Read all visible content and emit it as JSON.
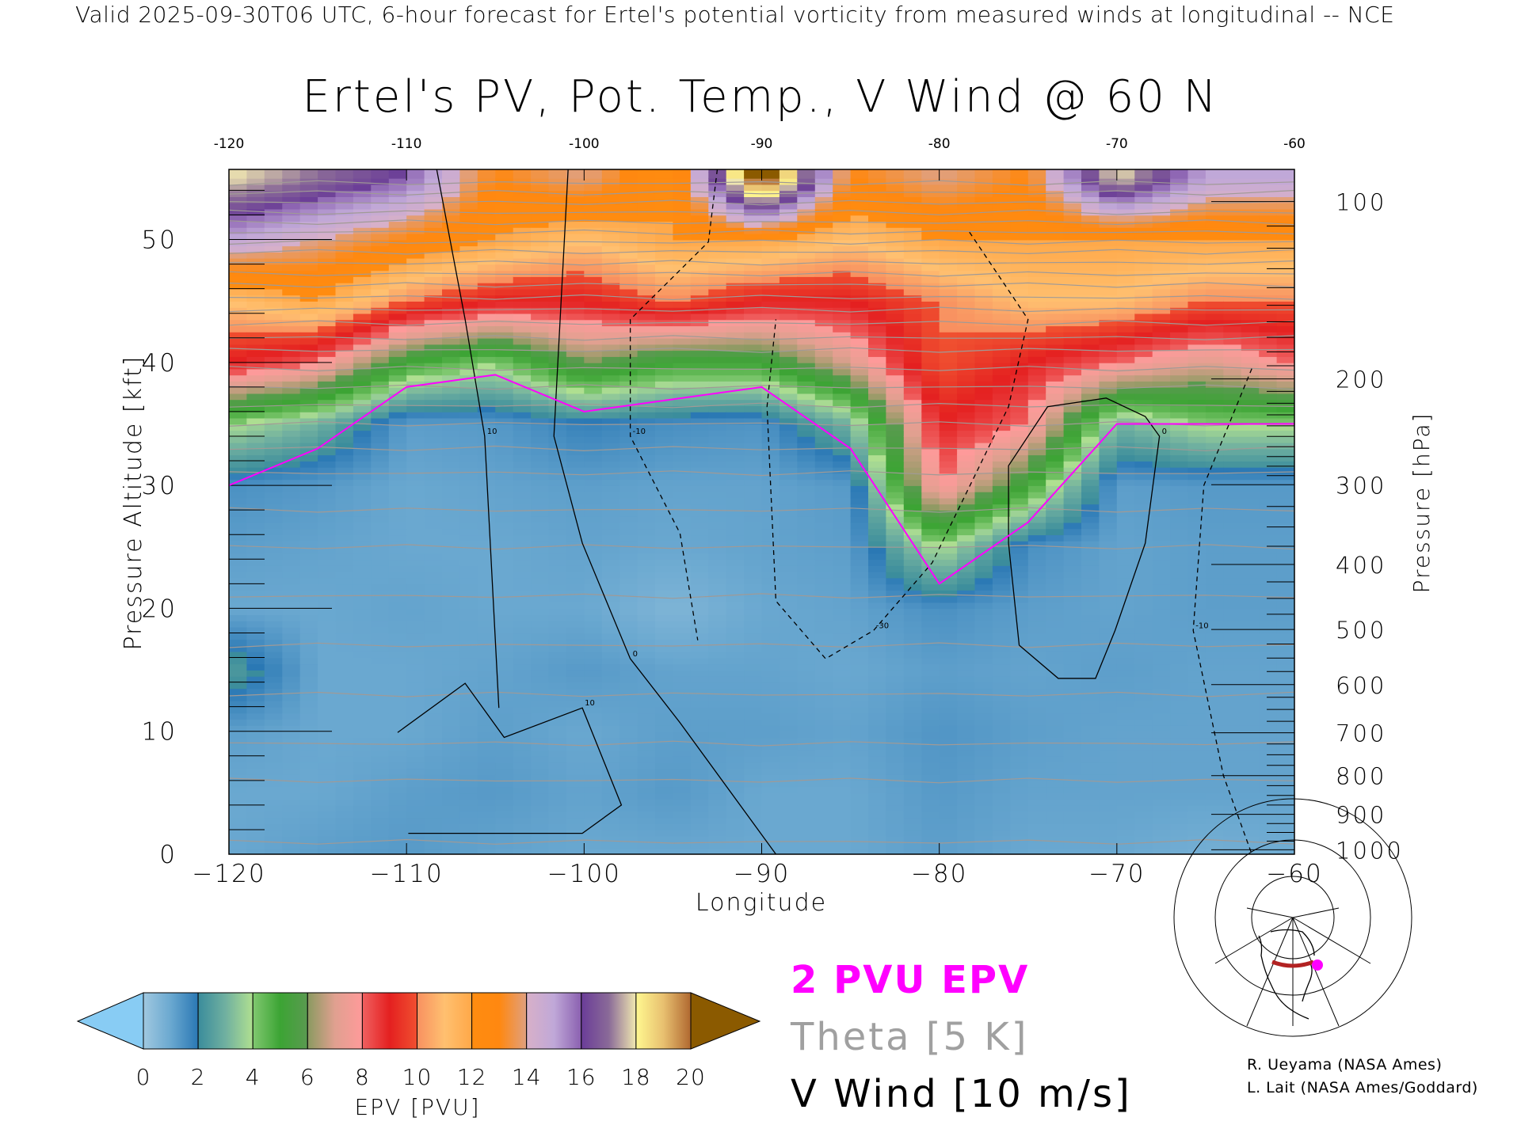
{
  "header": {
    "subtitle": "Valid 2025-09-30T06 UTC, 6-hour forecast for Ertel's potential vorticity from measured winds at longitudinal -- NCE",
    "title": "Ertel's PV, Pot. Temp., V Wind @ 60 N"
  },
  "legend": {
    "epv_label": "2 PVU EPV",
    "theta_label": "Theta [5 K]",
    "wind_label": "V Wind [10 m/s]",
    "epv_color": "#ff00ff",
    "theta_color": "#a0a0a0",
    "wind_color": "#000000"
  },
  "credits": {
    "line1": "R. Ueyama (NASA Ames)",
    "line2": "L. Lait (NASA Ames/Goddard)"
  },
  "chart_data": {
    "type": "heatmap",
    "title": "Ertel's PV, Pot. Temp., V Wind @ 60 N",
    "xlabel": "Longitude",
    "ylabel": "Pressure Altitude [kft]",
    "ylabel_right": "Pressure [hPa]",
    "xlim": [
      -120,
      -60
    ],
    "ylim": [
      0,
      55.7
    ],
    "x_ticks": [
      -120,
      -110,
      -100,
      -90,
      -80,
      -70,
      -60
    ],
    "x_tick_labels": [
      "−120",
      "−110",
      "−100",
      "−90",
      "−80",
      "−70",
      "−60"
    ],
    "top_tick_labels": [
      "-120",
      "-110",
      "-100",
      "-90",
      "-80",
      "-70",
      "-60"
    ],
    "y_ticks": [
      0,
      10,
      20,
      30,
      40,
      50
    ],
    "y_tick_labels": [
      "0",
      "10",
      "20",
      "30",
      "40",
      "50"
    ],
    "pressure_ticks": [
      100,
      200,
      300,
      400,
      500,
      600,
      700,
      800,
      900,
      1000
    ],
    "pressure_tick_labels": [
      "100",
      "200",
      "300",
      "400",
      "500",
      "600",
      "700",
      "800",
      "900",
      "1000"
    ],
    "grid_lon": [
      -120,
      -115,
      -110,
      -105,
      -100,
      -95,
      -90,
      -85,
      -80,
      -75,
      -70,
      -65,
      -60
    ],
    "grid_alt_kft": [
      0,
      5,
      10,
      15,
      20,
      25,
      30,
      35,
      40,
      45,
      50,
      55
    ],
    "epv_pvu_by_lon": [
      [
        1.0,
        1.0,
        1.2,
        2.5,
        1.0,
        1.2,
        1.5,
        4.0,
        9.0,
        11,
        15,
        18
      ],
      [
        1.2,
        1.0,
        1.0,
        1.0,
        1.0,
        1.1,
        1.3,
        3.0,
        8.0,
        12,
        14,
        17
      ],
      [
        1.3,
        1.2,
        1.0,
        1.0,
        1.1,
        1.0,
        1.0,
        1.2,
        5.0,
        10,
        13,
        16
      ],
      [
        1.1,
        1.3,
        1.2,
        1.1,
        1.0,
        1.0,
        1.1,
        1.3,
        4.0,
        9,
        12,
        13
      ],
      [
        1.0,
        1.1,
        1.0,
        1.3,
        1.0,
        1.1,
        1.2,
        1.8,
        6.0,
        9,
        11,
        14
      ],
      [
        1.0,
        1.3,
        1.2,
        1.1,
        0.6,
        1.0,
        1.1,
        1.5,
        5.0,
        10,
        12,
        12
      ],
      [
        1.0,
        1.0,
        1.2,
        1.1,
        1.0,
        1.1,
        1.1,
        1.4,
        5.0,
        9,
        12,
        21
      ],
      [
        1.0,
        1.0,
        1.1,
        1.0,
        1.1,
        1.2,
        1.3,
        3.0,
        7.0,
        9,
        11,
        13
      ],
      [
        1.2,
        1.3,
        1.4,
        1.2,
        1.5,
        4.0,
        8.0,
        9.0,
        10,
        10,
        12,
        14
      ],
      [
        1.0,
        1.1,
        1.2,
        1.1,
        1.2,
        1.5,
        5.0,
        8.0,
        9.0,
        11,
        12,
        13
      ],
      [
        1.0,
        1.1,
        1.1,
        1.2,
        1.1,
        1.1,
        1.2,
        3.0,
        8.0,
        11,
        12,
        18
      ],
      [
        0.8,
        1.1,
        1.1,
        1.1,
        1.2,
        1.2,
        1.3,
        4.0,
        7.0,
        10,
        12,
        15
      ],
      [
        0.9,
        1.1,
        1.1,
        1.1,
        1.2,
        1.2,
        1.3,
        4.0,
        8.0,
        10,
        12,
        15
      ]
    ],
    "tropopause_2pvu_kft": [
      30,
      33,
      38,
      39,
      36,
      37,
      38,
      33,
      22,
      27,
      35,
      35,
      35
    ],
    "theta_contours_K": [
      280,
      285,
      290,
      295,
      300,
      305,
      310,
      315,
      320,
      325,
      330,
      335,
      340,
      345,
      350,
      355,
      360,
      365,
      370,
      375,
      380,
      385,
      390,
      395,
      400,
      405,
      410,
      415,
      420,
      425
    ],
    "theta_contours_kft": [
      1,
      6,
      9,
      13,
      17,
      21,
      25,
      28,
      31,
      33,
      35,
      36.5,
      38,
      39.5,
      41,
      42,
      43.2,
      44.3,
      45.3,
      46.3,
      47.2,
      48.1,
      49,
      49.8,
      50.6,
      51.4,
      52.2,
      53,
      53.8,
      54.6
    ],
    "v_wind_contours": [
      {
        "value": "0",
        "dashed": false,
        "points": [
          [
            -100.9,
            55.7
          ],
          [
            -101.7,
            34
          ],
          [
            -100.1,
            25.3
          ],
          [
            -97.4,
            15.9
          ],
          [
            -94.6,
            10.7
          ],
          [
            -89.2,
            0
          ]
        ]
      },
      {
        "value": "10",
        "dashed": false,
        "points": [
          [
            -108.3,
            55.7
          ],
          [
            -106.7,
            43.5
          ],
          [
            -105.6,
            34
          ],
          [
            -104.8,
            11.9
          ]
        ]
      },
      {
        "value": "10",
        "dashed": false,
        "points": [
          [
            -110.5,
            9.9
          ],
          [
            -106.7,
            13.9
          ],
          [
            -104.5,
            9.5
          ],
          [
            -100.1,
            11.9
          ],
          [
            -97.9,
            4.0
          ],
          [
            -100.1,
            1.7
          ],
          [
            -109.9,
            1.7
          ]
        ]
      },
      {
        "value": "0",
        "dashed": false,
        "points": [
          [
            -75.5,
            17
          ],
          [
            -76.1,
            25.3
          ],
          [
            -76.1,
            31.6
          ],
          [
            -73.9,
            36.4
          ],
          [
            -70.6,
            37.1
          ],
          [
            -68.4,
            35.6
          ],
          [
            -67.6,
            34
          ],
          [
            -68.4,
            25.3
          ],
          [
            -70.1,
            18.2
          ],
          [
            -71.2,
            14.3
          ],
          [
            -73.3,
            14.3
          ],
          [
            -75.5,
            17
          ]
        ]
      },
      {
        "value": "-10",
        "dashed": true,
        "points": [
          [
            -92.5,
            55.7
          ],
          [
            -93.0,
            49.8
          ],
          [
            -97.4,
            43.5
          ],
          [
            -97.4,
            34
          ],
          [
            -94.6,
            26.1
          ],
          [
            -93.6,
            17.4
          ]
        ]
      },
      {
        "value": "-30",
        "dashed": true,
        "points": [
          [
            -78.3,
            50.6
          ],
          [
            -75.0,
            43.5
          ],
          [
            -76.1,
            36.4
          ],
          [
            -80.4,
            23.7
          ],
          [
            -83.7,
            18.2
          ],
          [
            -86.4,
            15.9
          ],
          [
            -89.2,
            20.6
          ],
          [
            -89.7,
            36.4
          ],
          [
            -89.2,
            43.5
          ]
        ]
      },
      {
        "value": "-10",
        "dashed": true,
        "points": [
          [
            -62.4,
            39.5
          ],
          [
            -65.1,
            30
          ],
          [
            -65.7,
            18.2
          ],
          [
            -64.0,
            6.4
          ],
          [
            -62.4,
            0
          ]
        ]
      }
    ],
    "colorbar": {
      "label": "EPV [PVU]",
      "ticks": [
        "0",
        "2",
        "4",
        "6",
        "8",
        "10",
        "12",
        "14",
        "16",
        "18",
        "20"
      ],
      "under_color": "#88ccf4",
      "over_color": "#8b5a00",
      "segments": [
        [
          "#a0c8e0",
          "#6aa8d0",
          "#2a78b4"
        ],
        [
          "#3a8c9c",
          "#70b0a0",
          "#b0e090"
        ],
        [
          "#80c870",
          "#3ca434",
          "#5a9a50"
        ],
        [
          "#8a9a60",
          "#e0a090",
          "#ff9a9a"
        ],
        [
          "#f06060",
          "#e42020",
          "#f05030"
        ],
        [
          "#f89060",
          "#ffc070",
          "#ffa848"
        ],
        [
          "#ff8c10",
          "#ff8810",
          "#e0a080"
        ],
        [
          "#d8b0c8",
          "#c0a8d8",
          "#8a60b0"
        ],
        [
          "#6a3c98",
          "#8a6a98",
          "#f0e8b0"
        ],
        [
          "#fff890",
          "#e8c070",
          "#b06830"
        ]
      ]
    }
  }
}
